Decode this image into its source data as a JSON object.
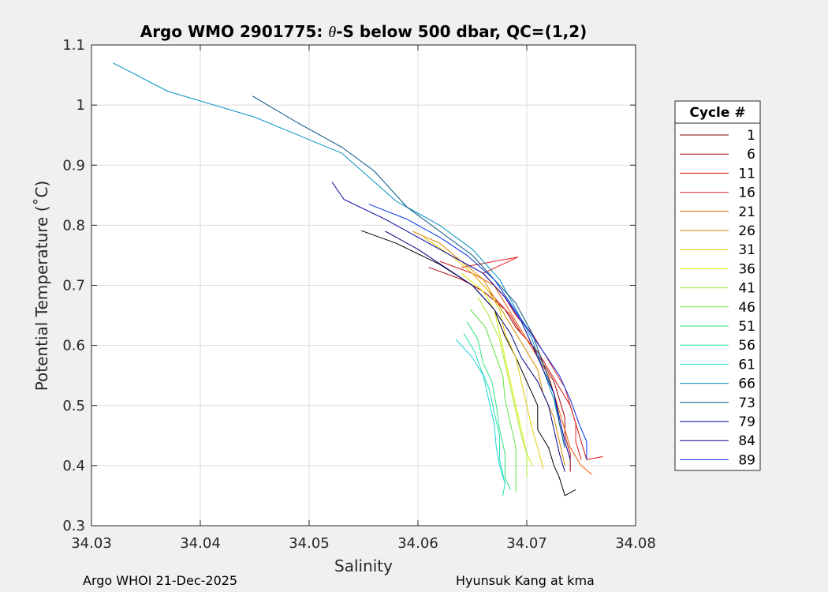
{
  "chart_data": {
    "type": "line",
    "title_prefix": "Argo WMO 2901775: ",
    "title_theta": "θ",
    "title_suffix": "-S below 500 dbar,  QC=(1,2)",
    "xlabel": "Salinity",
    "ylabel": "Potential Temperature (˚C)",
    "xlim": [
      34.03,
      34.08
    ],
    "ylim": [
      0.3,
      1.1
    ],
    "xticks": [
      "34.03",
      "34.04",
      "34.05",
      "34.06",
      "34.07",
      "34.08"
    ],
    "yticks": [
      "0.3",
      "0.4",
      "0.5",
      "0.6",
      "0.7",
      "0.8",
      "0.9",
      "1",
      "1.1"
    ],
    "grid": true,
    "legend": {
      "title": "Cycle #",
      "placement": "right",
      "entries": [
        {
          "label": "1",
          "color": "#800000"
        },
        {
          "label": "6",
          "color": "#a80000"
        },
        {
          "label": "11",
          "color": "#d01010"
        },
        {
          "label": "16",
          "color": "#e82020"
        },
        {
          "label": "21",
          "color": "#f05a00"
        },
        {
          "label": "26",
          "color": "#d88a00"
        },
        {
          "label": "31",
          "color": "#e8c800"
        },
        {
          "label": "36",
          "color": "#d8f000"
        },
        {
          "label": "41",
          "color": "#a8e830"
        },
        {
          "label": "46",
          "color": "#60e040"
        },
        {
          "label": "51",
          "color": "#30e080"
        },
        {
          "label": "56",
          "color": "#20e0b0"
        },
        {
          "label": "61",
          "color": "#20d8d8"
        },
        {
          "label": "66",
          "color": "#0090c0"
        },
        {
          "label": "73",
          "color": "#005080"
        },
        {
          "label": "79",
          "color": "#0000a0"
        },
        {
          "label": "84",
          "color": "#000080"
        },
        {
          "label": "89",
          "color": "#0030e0"
        }
      ]
    },
    "series": [
      {
        "name": "1",
        "color": "#000000",
        "points": [
          [
            34.0548,
            0.791
          ],
          [
            34.058,
            0.77
          ],
          [
            34.062,
            0.735
          ],
          [
            34.065,
            0.7
          ],
          [
            34.067,
            0.66
          ],
          [
            34.068,
            0.615
          ],
          [
            34.069,
            0.58
          ],
          [
            34.07,
            0.54
          ],
          [
            34.071,
            0.5
          ],
          [
            34.071,
            0.46
          ],
          [
            34.072,
            0.43
          ],
          [
            34.0725,
            0.4
          ],
          [
            34.073,
            0.38
          ],
          [
            34.0735,
            0.35
          ],
          [
            34.0745,
            0.36
          ]
        ]
      },
      {
        "name": "6",
        "color": "#a80000",
        "points": [
          [
            34.061,
            0.73
          ],
          [
            34.064,
            0.71
          ],
          [
            34.066,
            0.69
          ],
          [
            34.068,
            0.66
          ],
          [
            34.069,
            0.63
          ],
          [
            34.0705,
            0.6
          ],
          [
            34.0715,
            0.57
          ],
          [
            34.0725,
            0.54
          ],
          [
            34.073,
            0.51
          ],
          [
            34.0735,
            0.48
          ],
          [
            34.0735,
            0.45
          ],
          [
            34.074,
            0.42
          ],
          [
            34.074,
            0.39
          ]
        ]
      },
      {
        "name": "11",
        "color": "#d01010",
        "points": [
          [
            34.062,
            0.74
          ],
          [
            34.065,
            0.72
          ],
          [
            34.067,
            0.68
          ],
          [
            34.0685,
            0.65
          ],
          [
            34.0695,
            0.62
          ],
          [
            34.071,
            0.59
          ],
          [
            34.072,
            0.56
          ],
          [
            34.073,
            0.53
          ],
          [
            34.074,
            0.5
          ],
          [
            34.0745,
            0.47
          ],
          [
            34.075,
            0.44
          ],
          [
            34.0755,
            0.41
          ],
          [
            34.077,
            0.415
          ]
        ]
      },
      {
        "name": "16",
        "color": "#e82020",
        "points": [
          [
            34.064,
            0.73
          ],
          [
            34.0692,
            0.747
          ],
          [
            34.066,
            0.72
          ],
          [
            34.068,
            0.68
          ],
          [
            34.069,
            0.65
          ],
          [
            34.0705,
            0.62
          ],
          [
            34.0715,
            0.59
          ],
          [
            34.0725,
            0.56
          ],
          [
            34.0735,
            0.53
          ],
          [
            34.074,
            0.5
          ],
          [
            34.0745,
            0.47
          ],
          [
            34.0745,
            0.44
          ],
          [
            34.075,
            0.41
          ]
        ]
      },
      {
        "name": "21",
        "color": "#f05a00",
        "points": [
          [
            34.065,
            0.72
          ],
          [
            34.067,
            0.7
          ],
          [
            34.068,
            0.67
          ],
          [
            34.069,
            0.64
          ],
          [
            34.07,
            0.61
          ],
          [
            34.071,
            0.58
          ],
          [
            34.072,
            0.55
          ],
          [
            34.0725,
            0.52
          ],
          [
            34.073,
            0.49
          ],
          [
            34.0735,
            0.46
          ],
          [
            34.074,
            0.43
          ],
          [
            34.075,
            0.4
          ],
          [
            34.076,
            0.385
          ]
        ]
      },
      {
        "name": "26",
        "color": "#d88a00",
        "points": [
          [
            34.0595,
            0.79
          ],
          [
            34.062,
            0.77
          ],
          [
            34.064,
            0.74
          ],
          [
            34.066,
            0.71
          ],
          [
            34.067,
            0.68
          ],
          [
            34.068,
            0.65
          ],
          [
            34.069,
            0.62
          ],
          [
            34.07,
            0.59
          ],
          [
            34.071,
            0.56
          ],
          [
            34.0715,
            0.52
          ],
          [
            34.0725,
            0.48
          ],
          [
            34.073,
            0.44
          ],
          [
            34.0735,
            0.4
          ]
        ]
      },
      {
        "name": "31",
        "color": "#e8c800",
        "points": [
          [
            34.0605,
            0.78
          ],
          [
            34.063,
            0.75
          ],
          [
            34.065,
            0.72
          ],
          [
            34.0665,
            0.69
          ],
          [
            34.0675,
            0.66
          ],
          [
            34.068,
            0.62
          ],
          [
            34.069,
            0.58
          ],
          [
            34.0695,
            0.54
          ],
          [
            34.07,
            0.5
          ],
          [
            34.0705,
            0.46
          ],
          [
            34.071,
            0.43
          ],
          [
            34.0715,
            0.395
          ]
        ]
      },
      {
        "name": "36",
        "color": "#d8f000",
        "points": [
          [
            34.064,
            0.72
          ],
          [
            34.066,
            0.69
          ],
          [
            34.067,
            0.66
          ],
          [
            34.0675,
            0.62
          ],
          [
            34.068,
            0.58
          ],
          [
            34.0685,
            0.54
          ],
          [
            34.069,
            0.5
          ],
          [
            34.0695,
            0.46
          ],
          [
            34.07,
            0.42
          ],
          [
            34.0705,
            0.4
          ]
        ]
      },
      {
        "name": "41",
        "color": "#a8e830",
        "points": [
          [
            34.0655,
            0.68
          ],
          [
            34.0665,
            0.65
          ],
          [
            34.0675,
            0.61
          ],
          [
            34.068,
            0.57
          ],
          [
            34.0685,
            0.53
          ],
          [
            34.069,
            0.49
          ],
          [
            34.0695,
            0.45
          ],
          [
            34.07,
            0.42
          ],
          [
            34.07,
            0.38
          ]
        ]
      },
      {
        "name": "46",
        "color": "#60e040",
        "points": [
          [
            34.0648,
            0.66
          ],
          [
            34.0662,
            0.63
          ],
          [
            34.067,
            0.59
          ],
          [
            34.0678,
            0.55
          ],
          [
            34.068,
            0.51
          ],
          [
            34.0685,
            0.47
          ],
          [
            34.069,
            0.43
          ],
          [
            34.069,
            0.39
          ],
          [
            34.069,
            0.355
          ]
        ]
      },
      {
        "name": "51",
        "color": "#30e080",
        "points": [
          [
            34.0645,
            0.64
          ],
          [
            34.0655,
            0.61
          ],
          [
            34.066,
            0.57
          ],
          [
            34.0668,
            0.54
          ],
          [
            34.0672,
            0.5
          ],
          [
            34.0675,
            0.46
          ],
          [
            34.068,
            0.42
          ],
          [
            34.068,
            0.38
          ],
          [
            34.0685,
            0.36
          ]
        ]
      },
      {
        "name": "56",
        "color": "#20e0b0",
        "points": [
          [
            34.0642,
            0.62
          ],
          [
            34.0652,
            0.59
          ],
          [
            34.0658,
            0.56
          ],
          [
            34.0665,
            0.53
          ],
          [
            34.067,
            0.49
          ],
          [
            34.0675,
            0.45
          ],
          [
            34.0675,
            0.41
          ],
          [
            34.068,
            0.37
          ],
          [
            34.0678,
            0.35
          ]
        ]
      },
      {
        "name": "61",
        "color": "#20d8d8",
        "points": [
          [
            34.0635,
            0.61
          ],
          [
            34.065,
            0.58
          ],
          [
            34.066,
            0.55
          ],
          [
            34.0665,
            0.51
          ],
          [
            34.067,
            0.47
          ],
          [
            34.0672,
            0.43
          ],
          [
            34.0675,
            0.4
          ],
          [
            34.068,
            0.37
          ]
        ]
      },
      {
        "name": "66",
        "color": "#0090c0",
        "points": [
          [
            34.032,
            1.07
          ],
          [
            34.037,
            1.023
          ],
          [
            34.045,
            0.98
          ],
          [
            34.053,
            0.92
          ],
          [
            34.058,
            0.84
          ],
          [
            34.062,
            0.8
          ],
          [
            34.065,
            0.76
          ],
          [
            34.0675,
            0.71
          ],
          [
            34.069,
            0.66
          ],
          [
            34.0705,
            0.61
          ],
          [
            34.0715,
            0.56
          ],
          [
            34.0725,
            0.51
          ],
          [
            34.073,
            0.47
          ],
          [
            34.0735,
            0.43
          ]
        ]
      },
      {
        "name": "73",
        "color": "#005080",
        "points": [
          [
            34.0448,
            1.015
          ],
          [
            34.049,
            0.97
          ],
          [
            34.053,
            0.93
          ],
          [
            34.056,
            0.89
          ],
          [
            34.059,
            0.83
          ],
          [
            34.062,
            0.79
          ],
          [
            34.065,
            0.75
          ],
          [
            34.067,
            0.71
          ],
          [
            34.069,
            0.67
          ],
          [
            34.0705,
            0.62
          ],
          [
            34.0715,
            0.57
          ],
          [
            34.0725,
            0.52
          ],
          [
            34.073,
            0.47
          ],
          [
            34.0735,
            0.43
          ]
        ]
      },
      {
        "name": "79",
        "color": "#0000a0",
        "points": [
          [
            34.0521,
            0.872
          ],
          [
            34.0532,
            0.843
          ],
          [
            34.057,
            0.81
          ],
          [
            34.06,
            0.78
          ],
          [
            34.063,
            0.75
          ],
          [
            34.066,
            0.72
          ],
          [
            34.068,
            0.68
          ],
          [
            34.0695,
            0.64
          ],
          [
            34.0705,
            0.6
          ],
          [
            34.0715,
            0.56
          ],
          [
            34.0725,
            0.52
          ],
          [
            34.073,
            0.48
          ],
          [
            34.0735,
            0.44
          ],
          [
            34.074,
            0.41
          ]
        ]
      },
      {
        "name": "84",
        "color": "#000080",
        "points": [
          [
            34.057,
            0.79
          ],
          [
            34.06,
            0.76
          ],
          [
            34.0625,
            0.73
          ],
          [
            34.065,
            0.7
          ],
          [
            34.067,
            0.66
          ],
          [
            34.0685,
            0.62
          ],
          [
            34.0695,
            0.58
          ],
          [
            34.071,
            0.54
          ],
          [
            34.072,
            0.5
          ],
          [
            34.0725,
            0.46
          ],
          [
            34.073,
            0.42
          ],
          [
            34.0735,
            0.39
          ]
        ]
      },
      {
        "name": "89",
        "color": "#0030e0",
        "points": [
          [
            34.0555,
            0.835
          ],
          [
            34.059,
            0.81
          ],
          [
            34.062,
            0.78
          ],
          [
            34.0645,
            0.75
          ],
          [
            34.067,
            0.71
          ],
          [
            34.0685,
            0.67
          ],
          [
            34.07,
            0.63
          ],
          [
            34.0715,
            0.59
          ],
          [
            34.073,
            0.55
          ],
          [
            34.074,
            0.51
          ],
          [
            34.0748,
            0.47
          ],
          [
            34.0755,
            0.44
          ],
          [
            34.0755,
            0.41
          ]
        ]
      }
    ]
  },
  "footer": {
    "left": "Argo WHOI 21-Dec-2025",
    "right": "Hyunsuk Kang at kma"
  }
}
